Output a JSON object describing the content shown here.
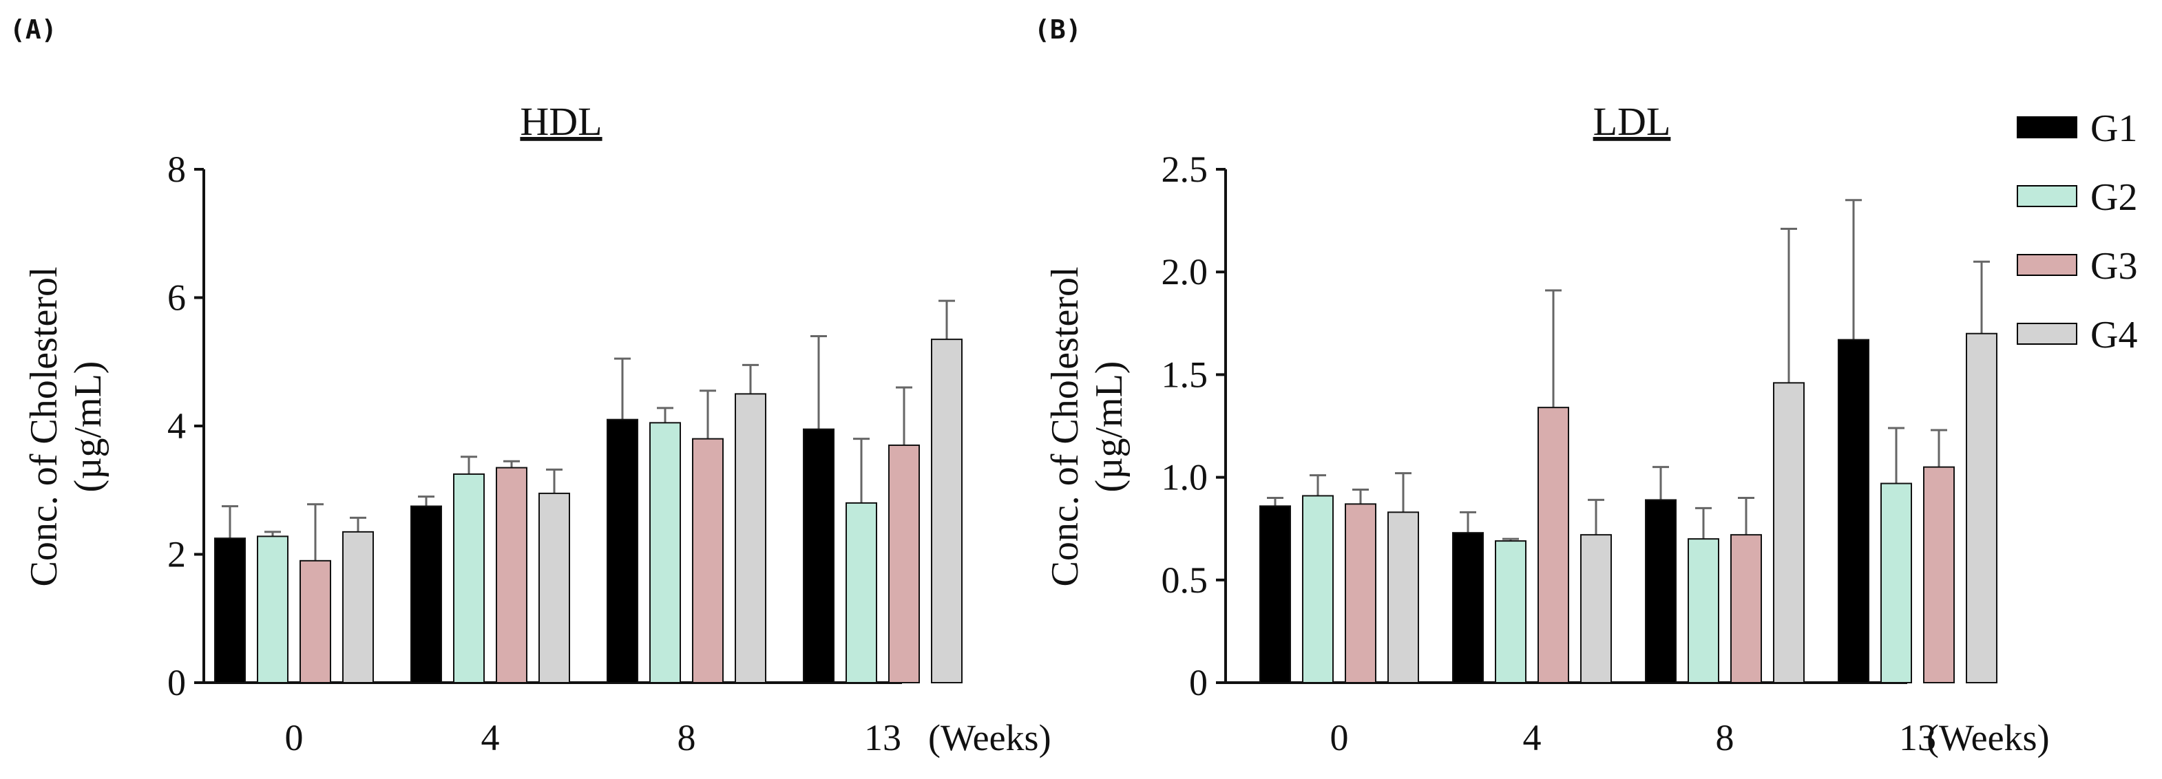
{
  "panels": [
    {
      "label": "(A)"
    },
    {
      "label": "(B)"
    }
  ],
  "legend": [
    {
      "name": "G1",
      "color": "#000000"
    },
    {
      "name": "G2",
      "color": "#bfeadb"
    },
    {
      "name": "G3",
      "color": "#d8adad"
    },
    {
      "name": "G4",
      "color": "#d3d3d3"
    }
  ],
  "chart_data": [
    {
      "type": "bar",
      "title": "HDL",
      "ylabel_line1": "Conc. of Cholesterol",
      "ylabel_line2": "(µg/mL)",
      "x_unit": "(Weeks)",
      "categories": [
        "0",
        "4",
        "8",
        "13"
      ],
      "ylim": [
        0,
        8
      ],
      "yticks": [
        0,
        2,
        4,
        6,
        8
      ],
      "ytick_labels": [
        "0",
        "2",
        "4",
        "6",
        "8"
      ],
      "series": [
        {
          "name": "G1",
          "values": [
            2.25,
            2.75,
            4.1,
            3.95
          ],
          "errors": [
            0.5,
            0.15,
            0.95,
            1.45
          ]
        },
        {
          "name": "G2",
          "values": [
            2.28,
            3.25,
            4.05,
            2.8
          ],
          "errors": [
            0.07,
            0.27,
            0.23,
            1.0
          ]
        },
        {
          "name": "G3",
          "values": [
            1.9,
            3.35,
            3.8,
            3.7
          ],
          "errors": [
            0.88,
            0.1,
            0.75,
            0.9
          ]
        },
        {
          "name": "G4",
          "values": [
            2.35,
            2.95,
            4.5,
            5.35
          ],
          "errors": [
            0.22,
            0.37,
            0.45,
            0.6
          ]
        }
      ]
    },
    {
      "type": "bar",
      "title": "LDL",
      "ylabel_line1": "Conc. of Cholesterol",
      "ylabel_line2": "(µg/mL)",
      "x_unit": "(Weeks)",
      "categories": [
        "0",
        "4",
        "8",
        "13"
      ],
      "ylim": [
        0,
        2.5
      ],
      "yticks": [
        0,
        0.5,
        1.0,
        1.5,
        2.0,
        2.5
      ],
      "ytick_labels": [
        "0",
        "0.5",
        "1.0",
        "1.5",
        "2.0",
        "2.5"
      ],
      "series": [
        {
          "name": "G1",
          "values": [
            0.86,
            0.73,
            0.89,
            1.67
          ],
          "errors": [
            0.04,
            0.1,
            0.16,
            0.68
          ]
        },
        {
          "name": "G2",
          "values": [
            0.91,
            0.69,
            0.7,
            0.97
          ],
          "errors": [
            0.1,
            0.01,
            0.15,
            0.27
          ]
        },
        {
          "name": "G3",
          "values": [
            0.87,
            1.34,
            0.72,
            1.05
          ],
          "errors": [
            0.07,
            0.57,
            0.18,
            0.18
          ]
        },
        {
          "name": "G4",
          "values": [
            0.83,
            0.72,
            1.46,
            1.7
          ],
          "errors": [
            0.19,
            0.17,
            0.75,
            0.35
          ]
        }
      ]
    }
  ]
}
